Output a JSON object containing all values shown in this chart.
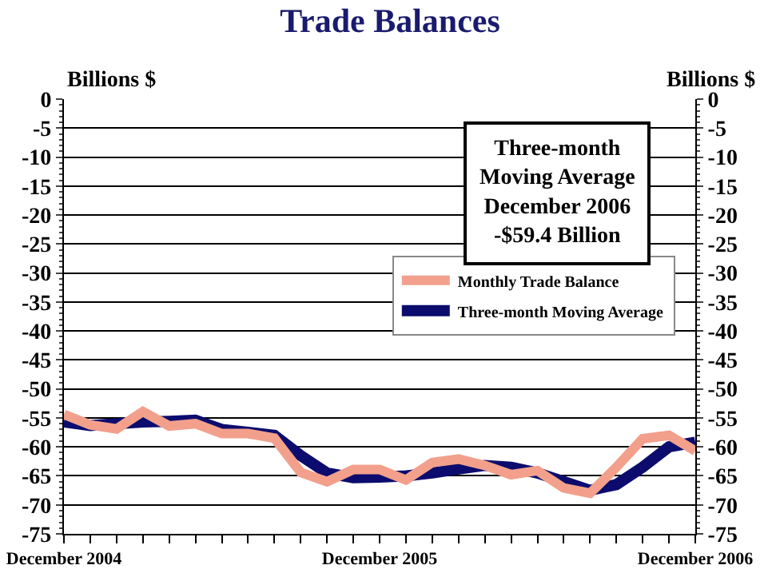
{
  "chart_data": {
    "type": "line",
    "title": "Trade Balances",
    "ylabel": "Billions $",
    "y2label": "Billions $",
    "categories": [
      "December 2004",
      null,
      null,
      null,
      null,
      null,
      null,
      null,
      null,
      null,
      null,
      null,
      "December 2005",
      null,
      null,
      null,
      null,
      null,
      null,
      null,
      null,
      null,
      null,
      null,
      "December 2006"
    ],
    "series": [
      {
        "name": "Monthly Trade Balance",
        "color": "#f2a08c",
        "values": [
          -54.4,
          -56.2,
          -56.9,
          -53.9,
          -56.4,
          -56,
          -57.7,
          -57.7,
          -58.5,
          -64.4,
          -66,
          -63.9,
          -63.9,
          -65.7,
          -62.7,
          -62.1,
          -63.2,
          -64.8,
          -64.1,
          -67.1,
          -68,
          -63.5,
          -58.6,
          -58,
          -60.7
        ]
      },
      {
        "name": "Three-month Moving Average",
        "color": "#0c0c6e",
        "values": [
          -55.7,
          -56.3,
          -56,
          -55.7,
          -55.6,
          -55.4,
          -57,
          -57.5,
          -58,
          -61.5,
          -64.5,
          -65.3,
          -65.2,
          -65,
          -64.5,
          -63.8,
          -63.2,
          -63.5,
          -64.5,
          -66,
          -67.5,
          -66.5,
          -63.5,
          -60,
          -59.2
        ]
      }
    ],
    "ylim": [
      -75,
      0
    ],
    "yticks": [
      0,
      -5,
      -10,
      -15,
      -20,
      -25,
      -30,
      -35,
      -40,
      -45,
      -50,
      -55,
      -60,
      -65,
      -70,
      -75
    ],
    "y2lim": [
      -75,
      0
    ],
    "y2ticks": [
      0,
      -5,
      -10,
      -15,
      -20,
      -25,
      -30,
      -35,
      -40,
      -45,
      -50,
      -55,
      -60,
      -65,
      -70,
      -75
    ],
    "grid": "y",
    "legend": "right",
    "marker": "none",
    "line_style": "solid",
    "annotations": [
      "Three-month\nMoving Average\nDecember 2006\n-$59.4 Billion"
    ]
  }
}
